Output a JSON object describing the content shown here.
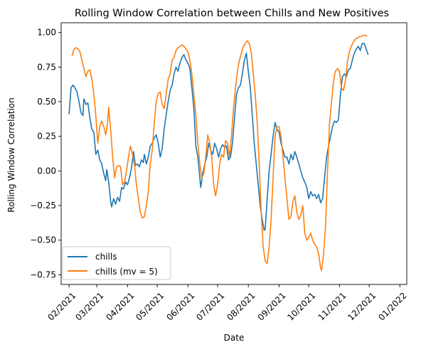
{
  "chart_data": {
    "type": "line",
    "title": "Rolling Window Correlation between Chills and New Positives",
    "xlabel": "Date",
    "ylabel": "Rolling Window Correlation",
    "xlim": [
      -8,
      341
    ],
    "ylim": [
      -0.82,
      1.07
    ],
    "x_ticks": [
      {
        "value": 0,
        "label": "02/2021"
      },
      {
        "value": 28,
        "label": "03/2021"
      },
      {
        "value": 59,
        "label": "04/2021"
      },
      {
        "value": 89,
        "label": "05/2021"
      },
      {
        "value": 120,
        "label": "06/2021"
      },
      {
        "value": 150,
        "label": "07/2021"
      },
      {
        "value": 181,
        "label": "08/2021"
      },
      {
        "value": 212,
        "label": "09/2021"
      },
      {
        "value": 242,
        "label": "10/2021"
      },
      {
        "value": 273,
        "label": "11/2021"
      },
      {
        "value": 303,
        "label": "12/2021"
      },
      {
        "value": 334,
        "label": "01/2022"
      }
    ],
    "y_ticks": [
      -0.75,
      -0.5,
      -0.25,
      0.0,
      0.25,
      0.5,
      0.75,
      1.0
    ],
    "y_tick_labels": [
      "−0.75",
      "−0.50",
      "−0.25",
      "0.00",
      "0.25",
      "0.50",
      "0.75",
      "1.00"
    ],
    "grid": false,
    "legend_position": "lower-left",
    "series": [
      {
        "name": "chills",
        "color": "#1f77b4",
        "points": [
          [
            0,
            0.41
          ],
          [
            2,
            0.6
          ],
          [
            4,
            0.62
          ],
          [
            6,
            0.6
          ],
          [
            8,
            0.57
          ],
          [
            10,
            0.5
          ],
          [
            12,
            0.42
          ],
          [
            14,
            0.4
          ],
          [
            15,
            0.52
          ],
          [
            17,
            0.48
          ],
          [
            19,
            0.49
          ],
          [
            21,
            0.38
          ],
          [
            23,
            0.3
          ],
          [
            25,
            0.28
          ],
          [
            27,
            0.12
          ],
          [
            29,
            0.15
          ],
          [
            31,
            0.08
          ],
          [
            33,
            0.05
          ],
          [
            35,
            -0.02
          ],
          [
            37,
            -0.07
          ],
          [
            38,
            0.01
          ],
          [
            40,
            -0.08
          ],
          [
            42,
            -0.22
          ],
          [
            43,
            -0.26
          ],
          [
            45,
            -0.2
          ],
          [
            47,
            -0.24
          ],
          [
            49,
            -0.19
          ],
          [
            51,
            -0.22
          ],
          [
            53,
            -0.12
          ],
          [
            55,
            -0.13
          ],
          [
            57,
            -0.08
          ],
          [
            59,
            -0.1
          ],
          [
            61,
            -0.05
          ],
          [
            63,
            0.02
          ],
          [
            65,
            0.14
          ],
          [
            67,
            0.04
          ],
          [
            69,
            0.05
          ],
          [
            71,
            0.03
          ],
          [
            73,
            0.08
          ],
          [
            75,
            0.06
          ],
          [
            76,
            0.12
          ],
          [
            78,
            0.05
          ],
          [
            80,
            0.1
          ],
          [
            82,
            0.18
          ],
          [
            84,
            0.2
          ],
          [
            86,
            0.24
          ],
          [
            88,
            0.26
          ],
          [
            90,
            0.2
          ],
          [
            92,
            0.1
          ],
          [
            94,
            0.16
          ],
          [
            96,
            0.3
          ],
          [
            98,
            0.4
          ],
          [
            100,
            0.5
          ],
          [
            102,
            0.58
          ],
          [
            104,
            0.62
          ],
          [
            106,
            0.7
          ],
          [
            108,
            0.75
          ],
          [
            110,
            0.72
          ],
          [
            112,
            0.78
          ],
          [
            114,
            0.82
          ],
          [
            116,
            0.84
          ],
          [
            118,
            0.8
          ],
          [
            120,
            0.78
          ],
          [
            122,
            0.74
          ],
          [
            124,
            0.6
          ],
          [
            126,
            0.45
          ],
          [
            128,
            0.18
          ],
          [
            130,
            0.1
          ],
          [
            132,
            -0.05
          ],
          [
            133,
            -0.12
          ],
          [
            135,
            -0.02
          ],
          [
            137,
            0.05
          ],
          [
            139,
            0.1
          ],
          [
            141,
            0.2
          ],
          [
            143,
            0.15
          ],
          [
            145,
            0.12
          ],
          [
            147,
            0.2
          ],
          [
            149,
            0.16
          ],
          [
            151,
            0.1
          ],
          [
            153,
            0.16
          ],
          [
            155,
            0.19
          ],
          [
            157,
            0.17
          ],
          [
            159,
            0.18
          ],
          [
            161,
            0.08
          ],
          [
            163,
            0.1
          ],
          [
            165,
            0.2
          ],
          [
            167,
            0.38
          ],
          [
            169,
            0.55
          ],
          [
            171,
            0.6
          ],
          [
            173,
            0.62
          ],
          [
            175,
            0.7
          ],
          [
            177,
            0.8
          ],
          [
            179,
            0.85
          ],
          [
            181,
            0.72
          ],
          [
            183,
            0.6
          ],
          [
            185,
            0.4
          ],
          [
            187,
            0.2
          ],
          [
            189,
            0.05
          ],
          [
            191,
            -0.1
          ],
          [
            193,
            -0.25
          ],
          [
            195,
            -0.35
          ],
          [
            197,
            -0.43
          ],
          [
            198,
            -0.42
          ],
          [
            200,
            -0.2
          ],
          [
            202,
            0.0
          ],
          [
            204,
            0.12
          ],
          [
            206,
            0.25
          ],
          [
            208,
            0.35
          ],
          [
            210,
            0.3
          ],
          [
            212,
            0.28
          ],
          [
            214,
            0.2
          ],
          [
            216,
            0.15
          ],
          [
            218,
            0.1
          ],
          [
            220,
            0.1
          ],
          [
            222,
            0.05
          ],
          [
            224,
            0.12
          ],
          [
            226,
            0.08
          ],
          [
            228,
            0.14
          ],
          [
            230,
            0.1
          ],
          [
            232,
            0.05
          ],
          [
            234,
            0.0
          ],
          [
            236,
            -0.05
          ],
          [
            238,
            -0.08
          ],
          [
            240,
            -0.12
          ],
          [
            242,
            -0.2
          ],
          [
            244,
            -0.15
          ],
          [
            246,
            -0.18
          ],
          [
            248,
            -0.17
          ],
          [
            250,
            -0.2
          ],
          [
            252,
            -0.17
          ],
          [
            254,
            -0.23
          ],
          [
            256,
            -0.2
          ],
          [
            258,
            -0.05
          ],
          [
            260,
            0.1
          ],
          [
            262,
            0.18
          ],
          [
            264,
            0.25
          ],
          [
            266,
            0.32
          ],
          [
            268,
            0.36
          ],
          [
            270,
            0.35
          ],
          [
            272,
            0.37
          ],
          [
            274,
            0.55
          ],
          [
            276,
            0.68
          ],
          [
            278,
            0.7
          ],
          [
            280,
            0.68
          ],
          [
            282,
            0.73
          ],
          [
            284,
            0.74
          ],
          [
            286,
            0.8
          ],
          [
            288,
            0.85
          ],
          [
            290,
            0.88
          ],
          [
            292,
            0.9
          ],
          [
            294,
            0.87
          ],
          [
            296,
            0.92
          ],
          [
            298,
            0.92
          ],
          [
            300,
            0.88
          ],
          [
            302,
            0.84
          ]
        ]
      },
      {
        "name": "chills (mv = 5)",
        "color": "#ff7f0e",
        "points": [
          [
            3,
            0.83
          ],
          [
            5,
            0.88
          ],
          [
            7,
            0.89
          ],
          [
            9,
            0.88
          ],
          [
            11,
            0.86
          ],
          [
            13,
            0.8
          ],
          [
            15,
            0.74
          ],
          [
            17,
            0.68
          ],
          [
            19,
            0.72
          ],
          [
            21,
            0.73
          ],
          [
            23,
            0.66
          ],
          [
            25,
            0.55
          ],
          [
            27,
            0.4
          ],
          [
            28,
            0.3
          ],
          [
            29,
            0.2
          ],
          [
            31,
            0.32
          ],
          [
            33,
            0.36
          ],
          [
            35,
            0.32
          ],
          [
            37,
            0.26
          ],
          [
            39,
            0.35
          ],
          [
            40,
            0.46
          ],
          [
            42,
            0.3
          ],
          [
            44,
            0.1
          ],
          [
            46,
            -0.05
          ],
          [
            48,
            0.03
          ],
          [
            50,
            0.04
          ],
          [
            52,
            0.03
          ],
          [
            54,
            -0.1
          ],
          [
            56,
            -0.08
          ],
          [
            58,
            0.0
          ],
          [
            60,
            0.1
          ],
          [
            62,
            0.18
          ],
          [
            64,
            0.12
          ],
          [
            66,
            0.05
          ],
          [
            68,
            -0.1
          ],
          [
            70,
            -0.2
          ],
          [
            72,
            -0.3
          ],
          [
            74,
            -0.34
          ],
          [
            76,
            -0.33
          ],
          [
            78,
            -0.25
          ],
          [
            80,
            -0.15
          ],
          [
            82,
            0.05
          ],
          [
            84,
            0.15
          ],
          [
            86,
            0.35
          ],
          [
            88,
            0.5
          ],
          [
            90,
            0.56
          ],
          [
            92,
            0.57
          ],
          [
            94,
            0.48
          ],
          [
            96,
            0.45
          ],
          [
            98,
            0.55
          ],
          [
            100,
            0.66
          ],
          [
            102,
            0.7
          ],
          [
            104,
            0.8
          ],
          [
            106,
            0.82
          ],
          [
            108,
            0.87
          ],
          [
            110,
            0.89
          ],
          [
            112,
            0.9
          ],
          [
            114,
            0.91
          ],
          [
            116,
            0.9
          ],
          [
            118,
            0.88
          ],
          [
            120,
            0.86
          ],
          [
            122,
            0.8
          ],
          [
            124,
            0.7
          ],
          [
            126,
            0.55
          ],
          [
            128,
            0.4
          ],
          [
            130,
            0.2
          ],
          [
            132,
            0.05
          ],
          [
            134,
            -0.05
          ],
          [
            136,
            -0.02
          ],
          [
            138,
            0.1
          ],
          [
            140,
            0.26
          ],
          [
            142,
            0.2
          ],
          [
            144,
            0.1
          ],
          [
            146,
            -0.1
          ],
          [
            148,
            -0.18
          ],
          [
            150,
            -0.1
          ],
          [
            152,
            0.05
          ],
          [
            154,
            0.12
          ],
          [
            156,
            0.1
          ],
          [
            158,
            0.22
          ],
          [
            160,
            0.2
          ],
          [
            162,
            0.1
          ],
          [
            164,
            0.25
          ],
          [
            166,
            0.45
          ],
          [
            168,
            0.6
          ],
          [
            170,
            0.72
          ],
          [
            172,
            0.8
          ],
          [
            174,
            0.85
          ],
          [
            176,
            0.9
          ],
          [
            178,
            0.92
          ],
          [
            180,
            0.94
          ],
          [
            182,
            0.92
          ],
          [
            184,
            0.85
          ],
          [
            186,
            0.7
          ],
          [
            188,
            0.55
          ],
          [
            190,
            0.35
          ],
          [
            192,
            0.05
          ],
          [
            194,
            -0.3
          ],
          [
            196,
            -0.55
          ],
          [
            198,
            -0.65
          ],
          [
            200,
            -0.67
          ],
          [
            202,
            -0.55
          ],
          [
            204,
            -0.35
          ],
          [
            206,
            -0.05
          ],
          [
            208,
            0.25
          ],
          [
            210,
            0.32
          ],
          [
            212,
            0.32
          ],
          [
            214,
            0.25
          ],
          [
            216,
            0.1
          ],
          [
            218,
            -0.05
          ],
          [
            220,
            -0.2
          ],
          [
            222,
            -0.35
          ],
          [
            224,
            -0.33
          ],
          [
            226,
            -0.22
          ],
          [
            228,
            -0.18
          ],
          [
            230,
            -0.3
          ],
          [
            232,
            -0.35
          ],
          [
            234,
            -0.32
          ],
          [
            236,
            -0.25
          ],
          [
            238,
            -0.45
          ],
          [
            240,
            -0.5
          ],
          [
            242,
            -0.48
          ],
          [
            244,
            -0.45
          ],
          [
            246,
            -0.5
          ],
          [
            248,
            -0.53
          ],
          [
            250,
            -0.55
          ],
          [
            252,
            -0.6
          ],
          [
            254,
            -0.7
          ],
          [
            255,
            -0.72
          ],
          [
            257,
            -0.6
          ],
          [
            259,
            -0.4
          ],
          [
            261,
            0.0
          ],
          [
            263,
            0.35
          ],
          [
            265,
            0.5
          ],
          [
            267,
            0.65
          ],
          [
            269,
            0.72
          ],
          [
            271,
            0.74
          ],
          [
            273,
            0.72
          ],
          [
            275,
            0.6
          ],
          [
            277,
            0.58
          ],
          [
            279,
            0.65
          ],
          [
            281,
            0.78
          ],
          [
            283,
            0.86
          ],
          [
            285,
            0.9
          ],
          [
            287,
            0.93
          ],
          [
            289,
            0.95
          ],
          [
            291,
            0.96
          ],
          [
            293,
            0.97
          ],
          [
            295,
            0.97
          ],
          [
            297,
            0.98
          ],
          [
            299,
            0.98
          ],
          [
            301,
            0.97
          ]
        ]
      }
    ]
  }
}
